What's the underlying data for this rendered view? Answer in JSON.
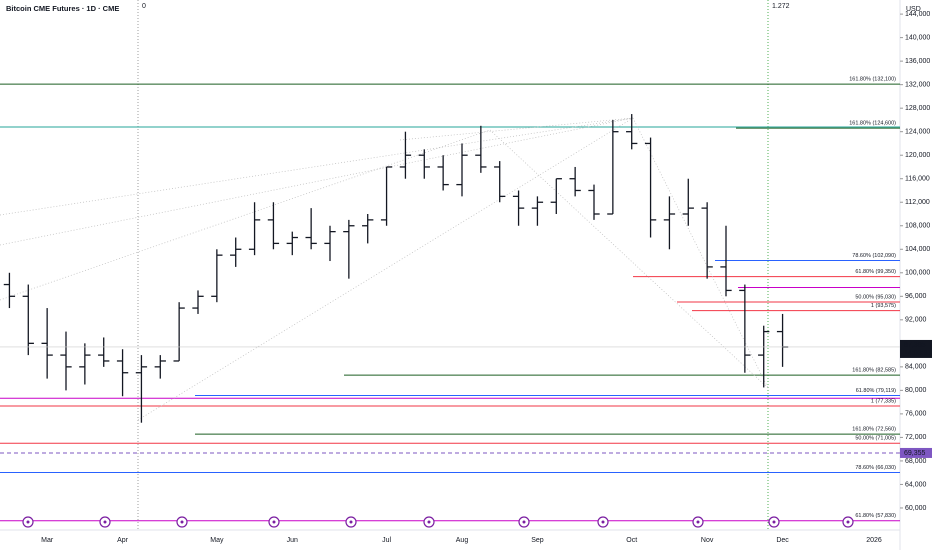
{
  "chart_data": {
    "type": "ohlc",
    "title": "Bitcoin CME Futures · 1D · CME",
    "currency": "USD",
    "categories": [
      null,
      null,
      "Mar",
      null,
      null,
      null,
      "Apr",
      null,
      null,
      null,
      null,
      "May",
      null,
      null,
      null,
      "Jun",
      null,
      null,
      null,
      null,
      "Jul",
      null,
      null,
      null,
      "Aug",
      null,
      null,
      null,
      "Sep",
      null,
      null,
      null,
      null,
      "Oct",
      null,
      null,
      null,
      "Nov",
      null,
      null,
      null,
      "Dec"
    ],
    "bar_color": "#131722",
    "open": [
      98000,
      96000,
      88000,
      86000,
      84000,
      86000,
      85000,
      83000,
      84000,
      85000,
      94000,
      96000,
      103000,
      104000,
      109000,
      105000,
      106000,
      105000,
      107000,
      108000,
      109000,
      118000,
      120000,
      118000,
      115000,
      120000,
      118000,
      113000,
      111000,
      112000,
      116000,
      114000,
      110000,
      124000,
      122000,
      109000,
      110000,
      111000,
      101000,
      97000,
      86000,
      90000
    ],
    "high": [
      100000,
      98000,
      94000,
      90000,
      88000,
      89000,
      87000,
      86000,
      86000,
      95000,
      97000,
      104000,
      106000,
      112000,
      112000,
      107000,
      111000,
      108000,
      109000,
      110000,
      118000,
      124000,
      121000,
      120000,
      122000,
      125000,
      119000,
      114000,
      113000,
      116000,
      118000,
      115000,
      126000,
      127000,
      123000,
      113000,
      116000,
      112000,
      108000,
      98000,
      91000,
      93000
    ],
    "low": [
      94000,
      86000,
      82000,
      80000,
      81000,
      84000,
      79000,
      74500,
      82000,
      85000,
      93000,
      95000,
      101000,
      103000,
      104000,
      103000,
      104000,
      102000,
      99000,
      105000,
      108000,
      116000,
      116000,
      114000,
      113000,
      117000,
      112000,
      108000,
      108000,
      110000,
      113000,
      109000,
      110000,
      121000,
      106000,
      104000,
      108000,
      99000,
      96000,
      83000,
      80500,
      84000
    ],
    "close": [
      96000,
      88000,
      86000,
      84000,
      86000,
      85000,
      83000,
      84000,
      85000,
      94000,
      96000,
      103000,
      104000,
      109000,
      105000,
      106000,
      105000,
      107000,
      108000,
      109000,
      118000,
      120000,
      118000,
      115000,
      120000,
      118000,
      113000,
      111000,
      112000,
      116000,
      114000,
      110000,
      124000,
      122000,
      109000,
      110000,
      111000,
      101000,
      97000,
      86000,
      90000,
      87385
    ],
    "ylim": [
      56250,
      146400
    ],
    "yticks": [
      {
        "value": 60000,
        "label": "60,000"
      },
      {
        "value": 64000,
        "label": "64,000"
      },
      {
        "value": 68000,
        "label": "68,000"
      },
      {
        "value": 72000,
        "label": "72,000"
      },
      {
        "value": 76000,
        "label": "76,000"
      },
      {
        "value": 80000,
        "label": "80,000"
      },
      {
        "value": 84000,
        "label": "84,000"
      },
      {
        "value": 88000,
        "label": "88,000"
      },
      {
        "value": 92000,
        "label": "92,000"
      },
      {
        "value": 96000,
        "label": "96,000"
      },
      {
        "value": 100000,
        "label": "100,000"
      },
      {
        "value": 104000,
        "label": "104,000"
      },
      {
        "value": 108000,
        "label": "108,000"
      },
      {
        "value": 112000,
        "label": "112,000"
      },
      {
        "value": 116000,
        "label": "116,000"
      },
      {
        "value": 120000,
        "label": "120,000"
      },
      {
        "value": 124000,
        "label": "124,000"
      },
      {
        "value": 128000,
        "label": "128,000"
      },
      {
        "value": 132000,
        "label": "132,000"
      },
      {
        "value": 136000,
        "label": "136,000"
      },
      {
        "value": 140000,
        "label": "140,000"
      },
      {
        "value": 144000,
        "label": "144,000"
      }
    ],
    "extra_xtick": "2026",
    "levels": [
      {
        "value": 132100,
        "label": "161.80% (132,100)",
        "color": "#1b5e20"
      },
      {
        "value": 124800,
        "color": "#26a69a"
      },
      {
        "value": 124600,
        "label": "161.80% (124,600)",
        "color": "#1b5e20"
      },
      {
        "value": 102090,
        "label": "78.60% (102,090)",
        "color": "#2962ff"
      },
      {
        "value": 99350,
        "label": "61.80% (99,350)",
        "color": "#f23645"
      },
      {
        "value": 97500,
        "color": "#c800c8"
      },
      {
        "value": 95030,
        "label": "50.00% (95,030)",
        "color": "#f23645"
      },
      {
        "value": 93575,
        "label": "1 (93,575)",
        "color": "#f23645"
      },
      {
        "value": 82585,
        "label": "161.80% (82,585)",
        "color": "#1b5e20"
      },
      {
        "value": 79119,
        "label": "61.80% (79,119)",
        "color": "#2962ff"
      },
      {
        "value": 78650,
        "color": "#c800c8"
      },
      {
        "value": 77335,
        "label": "1 (77,335)",
        "color": "#f23645"
      },
      {
        "value": 72560,
        "label": "161.80% (72,560)",
        "color": "#1b5e20"
      },
      {
        "value": 71005,
        "label": "50.00% (71,005)",
        "color": "#f23645"
      },
      {
        "value": 66030,
        "label": "78.60% (66,030)",
        "color": "#2962ff"
      },
      {
        "value": 57830,
        "label": "61.80% (57,830)",
        "color": "#c800c8"
      }
    ],
    "marker_level": {
      "value": 69355,
      "label": "69,355",
      "color": "#7e57c2"
    },
    "last_price": {
      "value": 87385,
      "label": "87,385",
      "countdown": "14:03:33"
    },
    "vertical_markers": [
      {
        "label": "0",
        "color": "#9e9e9e"
      },
      {
        "label": "1.272",
        "color": "#4caf50"
      }
    ]
  }
}
